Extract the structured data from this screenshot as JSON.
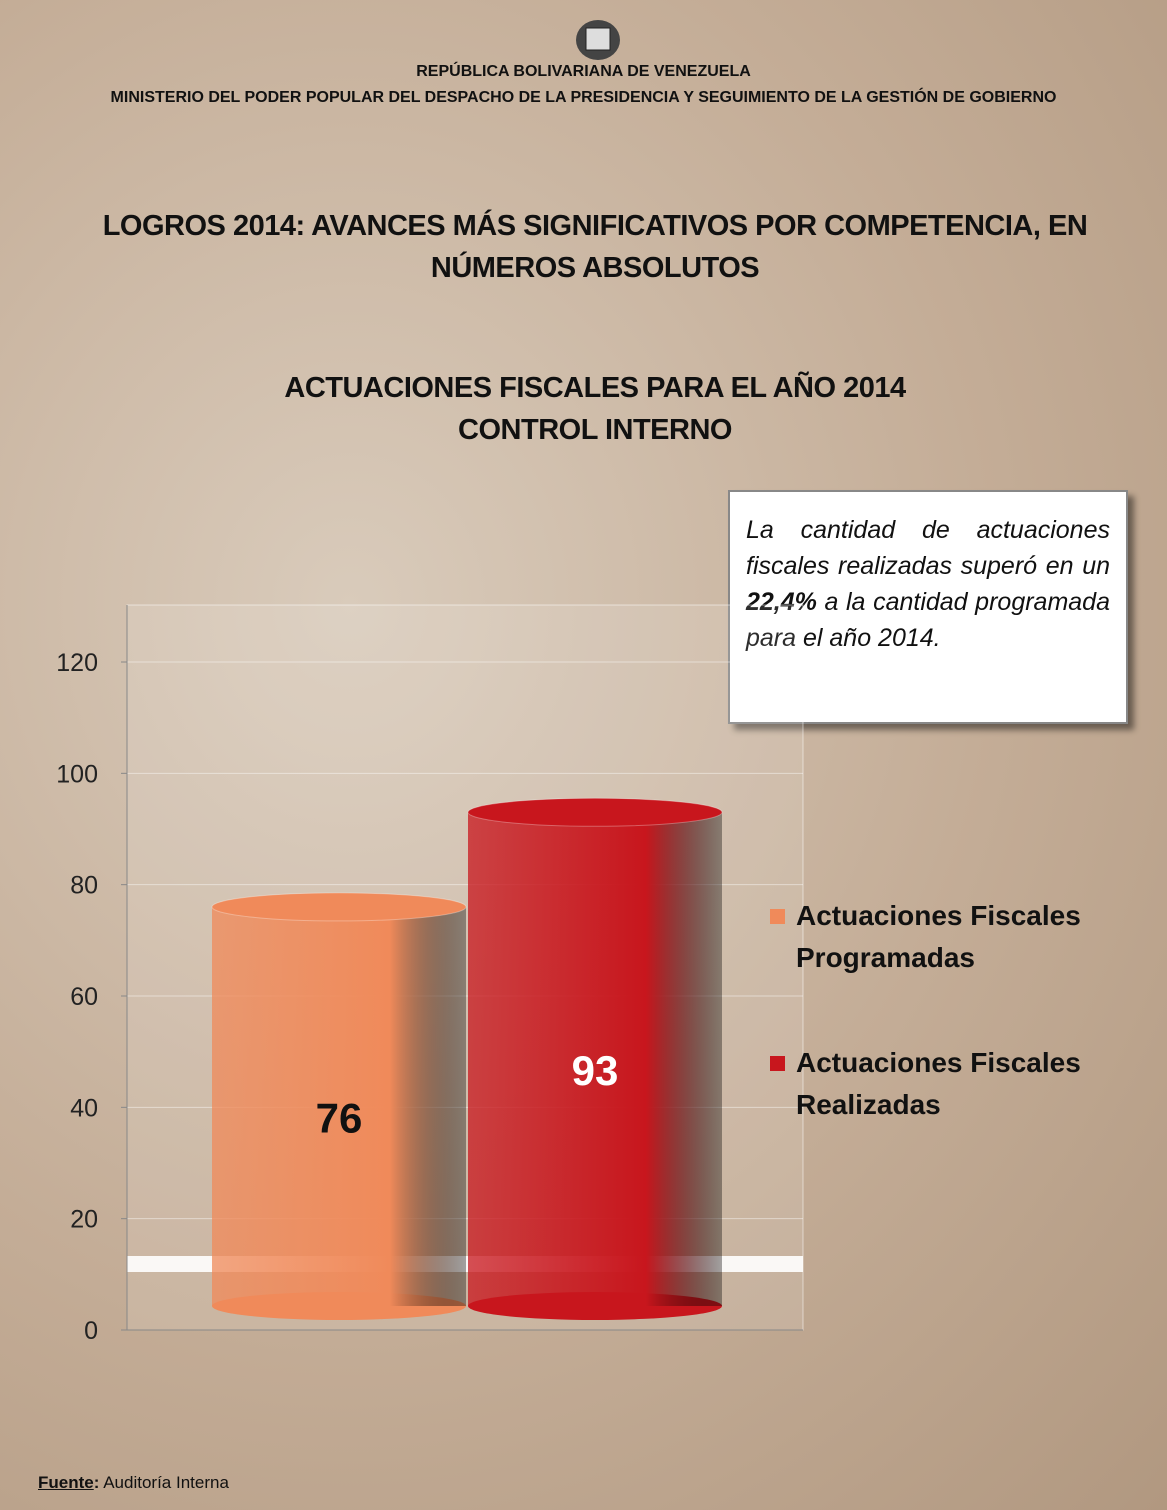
{
  "header": {
    "line1": "REPÚBLICA BOLIVARIANA DE VENEZUELA",
    "line2": "MINISTERIO DEL PODER POPULAR DEL DESPACHO DE LA PRESIDENCIA Y SEGUIMIENTO DE LA GESTIÓN DE GOBIERNO"
  },
  "heading": "LOGROS 2014: AVANCES MÁS SIGNIFICATIVOS POR COMPETENCIA, EN NÚMEROS ABSOLUTOS",
  "chart_data": {
    "type": "bar",
    "title": "ACTUACIONES FISCALES PARA EL AÑO 2014",
    "subtitle": "CONTROL INTERNO",
    "categories": [
      null
    ],
    "series": [
      {
        "name": "Actuaciones Fiscales Programadas",
        "color": "#f08a5a",
        "values": [
          76
        ]
      },
      {
        "name": "Actuaciones Fiscales Realizadas",
        "color": "#c8161d",
        "values": [
          93
        ]
      }
    ],
    "ylim": [
      0,
      120
    ],
    "yticks": [
      0,
      20,
      40,
      60,
      80,
      100,
      120
    ],
    "grid": true,
    "legend": "right"
  },
  "callout": {
    "before": "La cantidad de actuaciones fiscales realizadas superó en un",
    "highlight": "22,4%",
    "after": "a la cantidad programada para el año 2014."
  },
  "source": {
    "label": "Fuente",
    "text": "Auditoría Interna"
  }
}
